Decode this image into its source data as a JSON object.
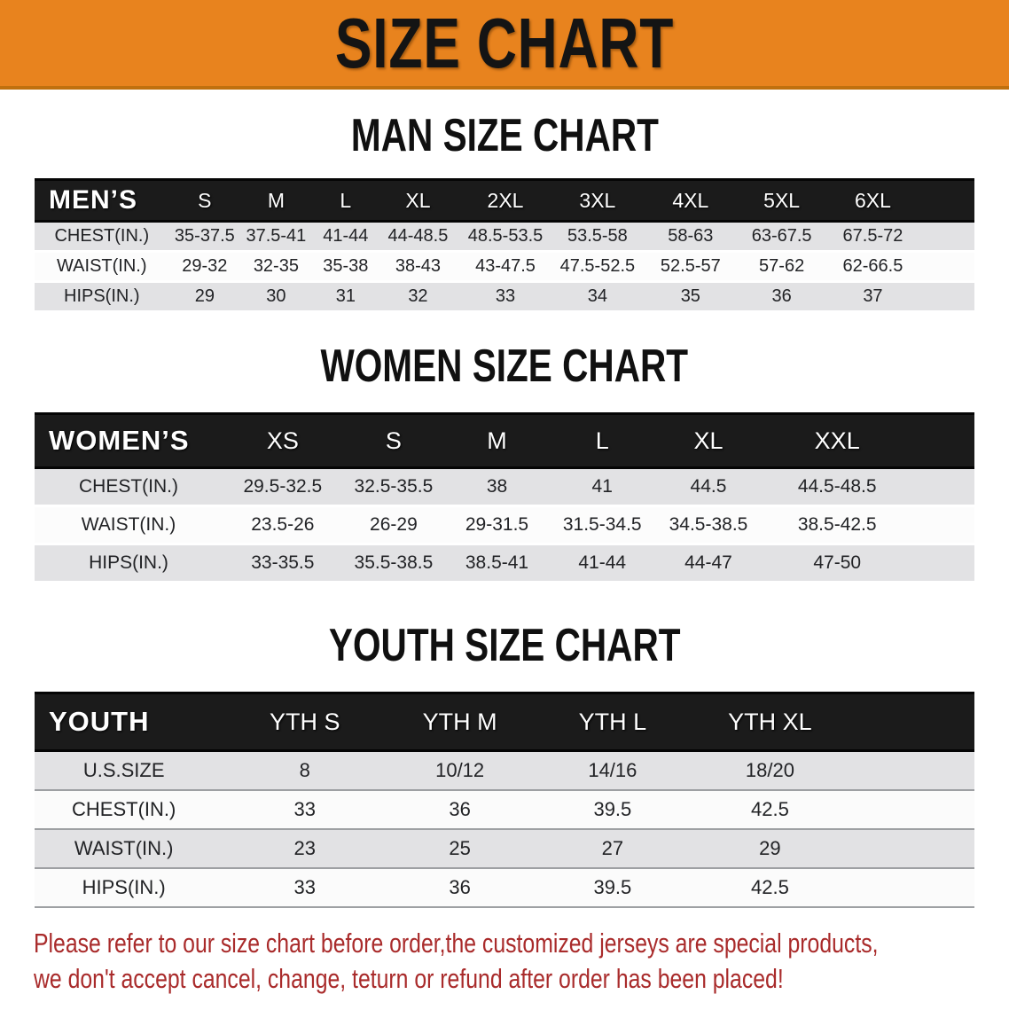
{
  "banner": {
    "title": "SIZE CHART",
    "background_color": "#E8831E",
    "title_color": "#141414"
  },
  "sections": [
    {
      "heading": "MAN SIZE CHART",
      "table": {
        "header_label": "MEN’S",
        "columns": [
          "S",
          "M",
          "L",
          "XL",
          "2XL",
          "3XL",
          "4XL",
          "5XL",
          "6XL"
        ],
        "rows": [
          {
            "label": "CHEST(IN.)",
            "values": [
              "35-37.5",
              "37.5-41",
              "41-44",
              "44-48.5",
              "48.5-53.5",
              "53.5-58",
              "58-63",
              "63-67.5",
              "67.5-72"
            ]
          },
          {
            "label": "WAIST(IN.)",
            "values": [
              "29-32",
              "32-35",
              "35-38",
              "38-43",
              "43-47.5",
              "47.5-52.5",
              "52.5-57",
              "57-62",
              "62-66.5"
            ]
          },
          {
            "label": "HIPS(IN.)",
            "values": [
              "29",
              "30",
              "31",
              "32",
              "33",
              "34",
              "35",
              "36",
              "37"
            ]
          }
        ]
      }
    },
    {
      "heading": "WOMEN SIZE CHART",
      "table": {
        "header_label": "WOMEN’S",
        "columns": [
          "XS",
          "S",
          "M",
          "L",
          "XL",
          "XXL"
        ],
        "rows": [
          {
            "label": "CHEST(IN.)",
            "values": [
              "29.5-32.5",
              "32.5-35.5",
              "38",
              "41",
              "44.5",
              "44.5-48.5"
            ]
          },
          {
            "label": "WAIST(IN.)",
            "values": [
              "23.5-26",
              "26-29",
              "29-31.5",
              "31.5-34.5",
              "34.5-38.5",
              "38.5-42.5"
            ]
          },
          {
            "label": "HIPS(IN.)",
            "values": [
              "33-35.5",
              "35.5-38.5",
              "38.5-41",
              "41-44",
              "44-47",
              "47-50"
            ]
          }
        ]
      }
    },
    {
      "heading": "YOUTH SIZE CHART",
      "table": {
        "header_label": "YOUTH",
        "columns": [
          "YTH S",
          "YTH M",
          "YTH L",
          "YTH XL"
        ],
        "rows": [
          {
            "label": "U.S.SIZE",
            "values": [
              "8",
              "10/12",
              "14/16",
              "18/20"
            ]
          },
          {
            "label": "CHEST(IN.)",
            "values": [
              "33",
              "36",
              "39.5",
              "42.5"
            ]
          },
          {
            "label": "WAIST(IN.)",
            "values": [
              "23",
              "25",
              "27",
              "29"
            ]
          },
          {
            "label": "HIPS(IN.)",
            "values": [
              "33",
              "36",
              "39.5",
              "42.5"
            ]
          }
        ]
      }
    }
  ],
  "disclaimer": {
    "line1": "Please refer to our size chart before order,the customized jerseys are special products,",
    "line2": "we don't accept cancel, change, teturn or refund after order has been placed!",
    "text_color": "#A92B2B"
  },
  "table_colors": {
    "header_bar": "#1B1B1B",
    "row_shaded": "#E2E2E4",
    "row_plain": "#FCFCFC",
    "youth_divider": "#9EA0A3"
  }
}
